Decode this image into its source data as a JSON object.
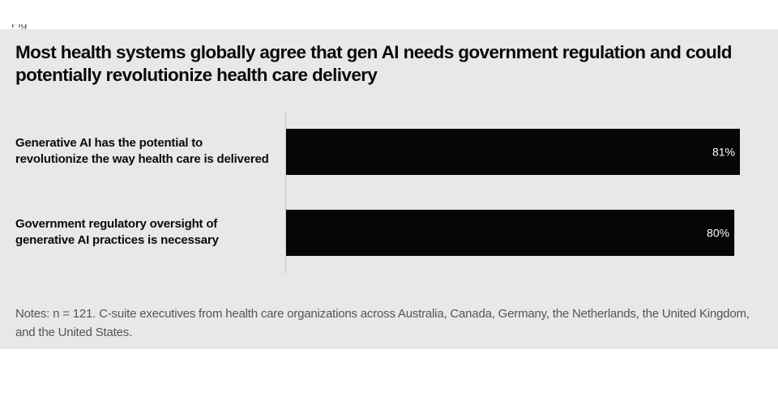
{
  "chart_data": {
    "type": "bar",
    "orientation": "horizontal",
    "title": "Most health systems globally agree that gen AI needs government regulation and could potentially revolutionize health care delivery",
    "categories": [
      "Generative AI has the potential to revolutionize the way health care is delivered",
      "Government regulatory oversight of generative AI practices is necessary"
    ],
    "values": [
      81,
      80
    ],
    "value_labels": [
      "81%",
      "80%"
    ],
    "xlim": [
      0,
      81
    ],
    "unit": "%",
    "grid": false,
    "bar_color": "#050606",
    "label_color": "#ffffff",
    "notes": "Notes: n = 121. C-suite executives from health care organizations across Australia, Canada, Germany, the Netherlands, the United Kingdom, and the United States."
  },
  "colors": {
    "panel_background": "#e8e8e9",
    "page_background": "#ffffff",
    "axis_line": "#c4c4c4"
  }
}
